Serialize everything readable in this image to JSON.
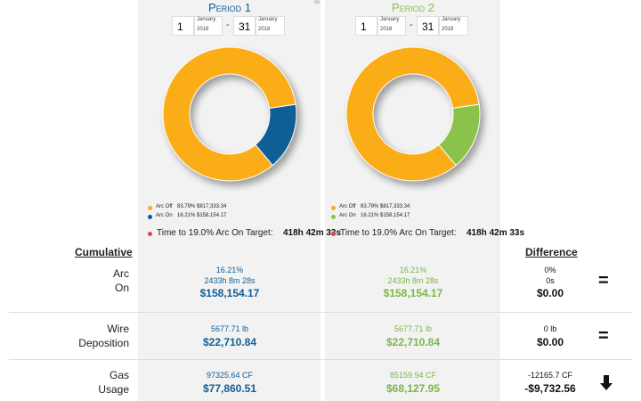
{
  "vs": "vs.",
  "periods": [
    {
      "title": "Period 1",
      "start_day": "1",
      "start_month": "January",
      "start_year": "2018",
      "dash": "-",
      "end_day": "31",
      "end_month": "January",
      "end_year": "2018",
      "legend": [
        {
          "name": "Arc Off",
          "value": 83.79,
          "value_label": "83.79%",
          "amount": "$817,333.34",
          "color": "#fbad18"
        },
        {
          "name": "Arc On",
          "value": 16.21,
          "value_label": "16.21%",
          "amount": "$158,154.17",
          "color": "#0f5f97"
        }
      ],
      "target_text": "Time to 19.0% Arc On Target:",
      "target_time": "418h 42m 33s"
    },
    {
      "title": "Period 2",
      "start_day": "1",
      "start_month": "January",
      "start_year": "2018",
      "dash": "-",
      "end_day": "31",
      "end_month": "January",
      "end_year": "2018",
      "legend": [
        {
          "name": "Arc Off",
          "value": 83.79,
          "value_label": "83.79%",
          "amount": "$817,333.34",
          "color": "#fbad18"
        },
        {
          "name": "Arc On",
          "value": 16.21,
          "value_label": "16.21%",
          "amount": "$158,154.17",
          "color": "#8bc34a"
        }
      ],
      "target_text": "Time to 19.0% Arc On Target:",
      "target_time": "418h 42m 33s"
    }
  ],
  "cumulative": "Cumulative",
  "difference": "Difference",
  "rows": [
    {
      "label": [
        "Arc",
        "On"
      ],
      "period1": [
        "16.21%",
        "2433h 8m 28s",
        "$158,154.17"
      ],
      "period2": [
        "16.21%",
        "2433h 8m 28s",
        "$158,154.17"
      ],
      "diff": [
        "0%",
        "0s",
        "$0.00"
      ],
      "indicator": "="
    },
    {
      "label": [
        "Wire",
        "Deposition"
      ],
      "period1": [
        "5677.71 lb",
        "$22,710.84"
      ],
      "period2": [
        "5677.71 lb",
        "$22,710.84"
      ],
      "diff": [
        "0 lb",
        "$0.00"
      ],
      "indicator": "="
    },
    {
      "label": [
        "Gas",
        "Usage"
      ],
      "period1": [
        "97325.64 CF",
        "$77,860.51"
      ],
      "period2": [
        "85159.94 CF",
        "$68,127.95"
      ],
      "diff": [
        "-12165.7 CF",
        "-$9,732.56"
      ]
    }
  ]
}
